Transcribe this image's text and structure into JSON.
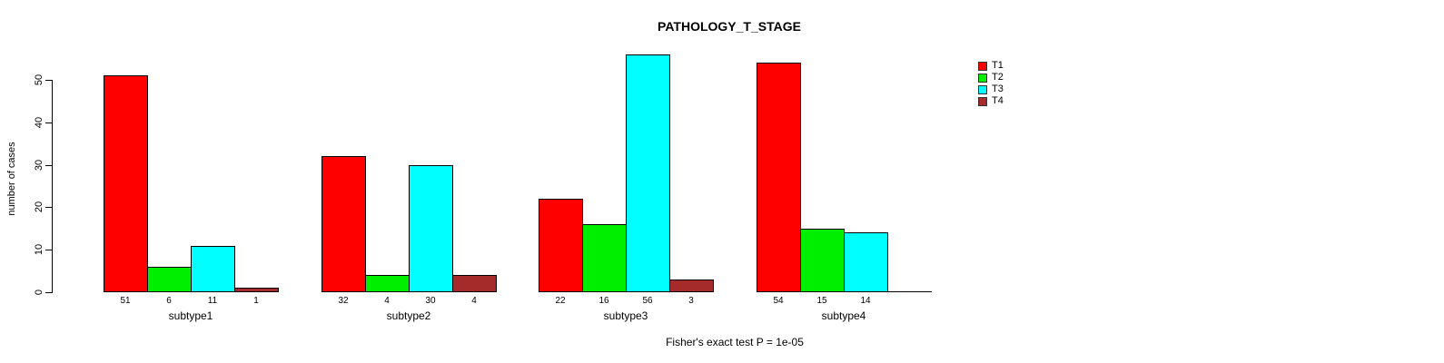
{
  "chart_data": {
    "type": "bar",
    "title": "PATHOLOGY_T_STAGE",
    "ylabel": "number of cases",
    "xlabel": "",
    "ylim": [
      0,
      50
    ],
    "yticks": [
      0,
      10,
      20,
      30,
      40,
      50
    ],
    "grid": false,
    "legend_position": "right",
    "bar_value_labels": true,
    "categories": [
      "subtype1",
      "subtype2",
      "subtype3",
      "subtype4"
    ],
    "series": [
      {
        "name": "T1",
        "color": "#ff0000",
        "values": [
          51,
          32,
          22,
          54
        ]
      },
      {
        "name": "T2",
        "color": "#00ee00",
        "values": [
          6,
          4,
          16,
          15
        ]
      },
      {
        "name": "T3",
        "color": "#00ffff",
        "values": [
          11,
          30,
          56,
          14
        ]
      },
      {
        "name": "T4",
        "color": "#a52a2a",
        "values": [
          1,
          4,
          3,
          0
        ]
      }
    ],
    "annotation": "Fisher's exact test P = 1e-05"
  }
}
